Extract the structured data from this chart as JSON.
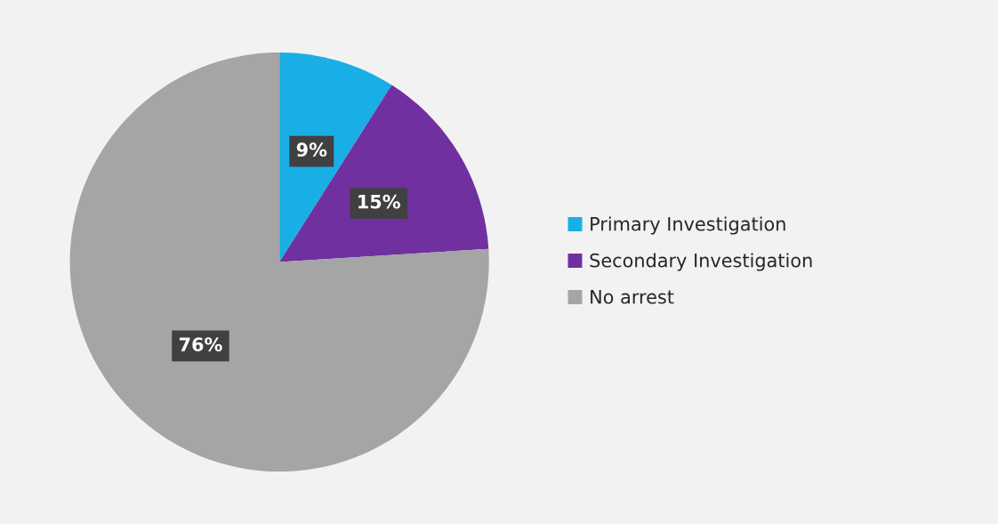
{
  "chart_data": {
    "type": "pie",
    "categories": [
      "Primary Investigation",
      "Secondary Investigation",
      "No arrest"
    ],
    "values": [
      9,
      15,
      76
    ],
    "value_labels": [
      "9%",
      "15%",
      "76%"
    ],
    "colors": [
      "#1aaee6",
      "#7030a0",
      "#a5a5a5"
    ],
    "legend": "right"
  }
}
